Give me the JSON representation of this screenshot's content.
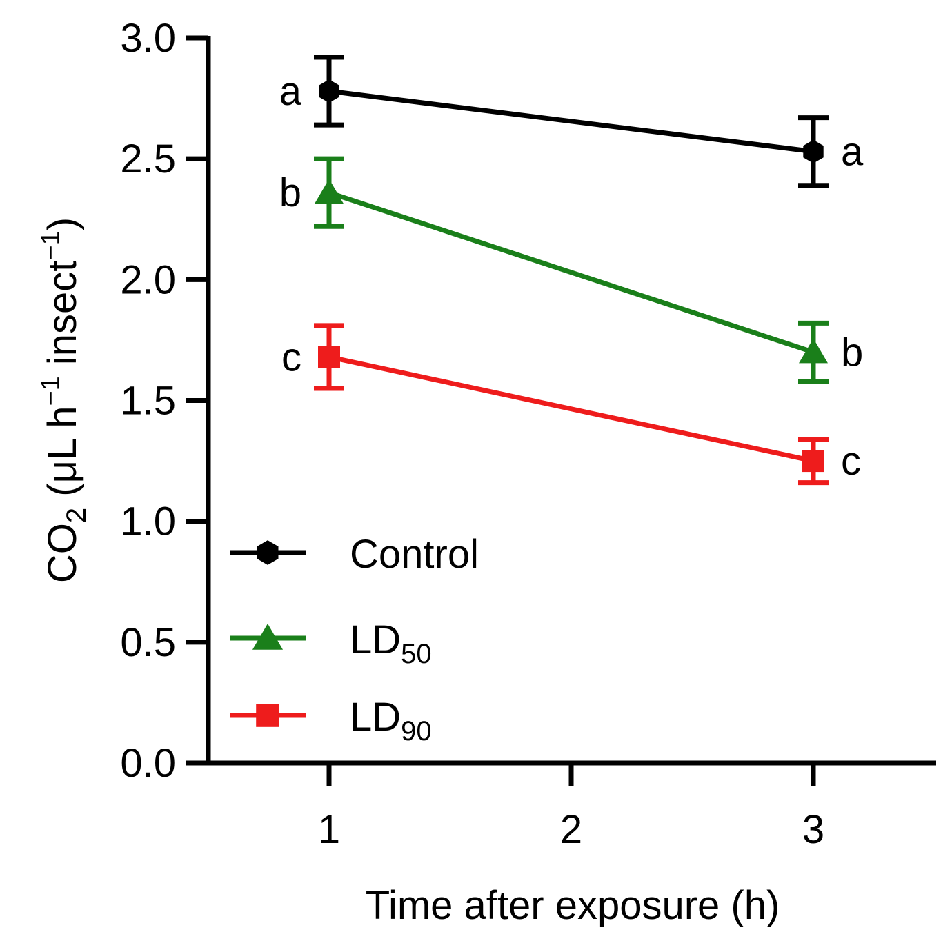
{
  "chart_data": {
    "type": "line",
    "x": [
      1,
      3
    ],
    "xlim": [
      0.5,
      3.5
    ],
    "ylim": [
      0.0,
      3.0
    ],
    "xticks": [
      "1",
      "2",
      "3"
    ],
    "yticks": [
      "0.0",
      "0.5",
      "1.0",
      "1.5",
      "2.0",
      "2.5",
      "3.0"
    ],
    "xlabel": "Time after exposure (h)",
    "ylabel": {
      "prefix": "CO",
      "sub": "2",
      "mid1": " (μL h",
      "sup1": "−1",
      "mid2": " insect",
      "sup2": "−1",
      "suffix": ")"
    },
    "grid": false,
    "legend_position": "lower-left",
    "series": [
      {
        "name": "Control",
        "legend_label": {
          "base": "Control",
          "sub": ""
        },
        "color": "#000000",
        "marker": "hexagon",
        "values": [
          2.78,
          2.53
        ],
        "errors": [
          0.14,
          0.14
        ],
        "letters": [
          "a",
          "a"
        ]
      },
      {
        "name": "LD50",
        "legend_label": {
          "base": "LD",
          "sub": "50"
        },
        "color": "#1a7f1a",
        "marker": "triangle",
        "values": [
          2.36,
          1.7
        ],
        "errors": [
          0.14,
          0.12
        ],
        "letters": [
          "b",
          "b"
        ]
      },
      {
        "name": "LD90",
        "legend_label": {
          "base": "LD",
          "sub": "90"
        },
        "color": "#ee1c1c",
        "marker": "square",
        "values": [
          1.68,
          1.25
        ],
        "errors": [
          0.13,
          0.09
        ],
        "letters": [
          "c",
          "c"
        ]
      }
    ]
  }
}
